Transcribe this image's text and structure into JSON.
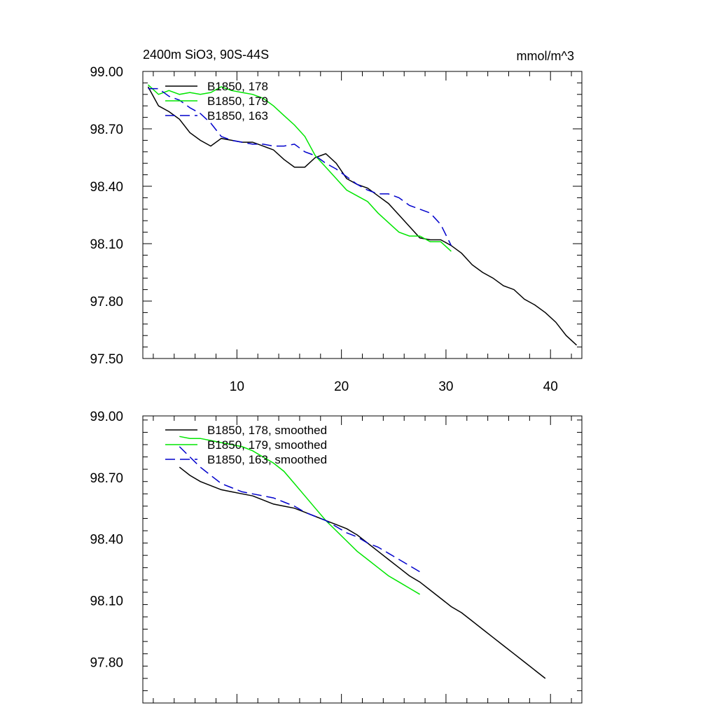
{
  "header": {
    "title": "2400m SiO3, 90S-44S",
    "units": "mmol/m^3"
  },
  "colors": {
    "c178": "#000000",
    "c179": "#00e600",
    "c163": "#0000cc"
  },
  "chart_data": [
    {
      "type": "line",
      "xlim": [
        1,
        43
      ],
      "ylim": [
        97.5,
        99.0
      ],
      "x_ticks": [
        "10",
        "20",
        "30",
        "40"
      ],
      "y_ticks": [
        "99.00",
        "98.70",
        "98.40",
        "98.10",
        "97.80",
        "97.50"
      ],
      "legend": [
        "B1850, 178",
        "B1850, 179",
        "B1850, 163"
      ],
      "series": [
        {
          "name": "B1850, 178",
          "x": [
            1.5,
            2.5,
            3.5,
            4.5,
            5.5,
            6.5,
            7.5,
            8.5,
            9.5,
            10.5,
            11.5,
            12.5,
            13.5,
            14.5,
            15.5,
            16.5,
            17.5,
            18.5,
            19.5,
            20.5,
            21.5,
            22.5,
            23.5,
            24.5,
            25.5,
            26.5,
            27.5,
            28.5,
            29.5,
            30.5,
            31.5,
            32.5,
            33.5,
            34.5,
            35.5,
            36.5,
            37.5,
            38.5,
            39.5,
            40.5,
            41.5,
            42.5
          ],
          "values": [
            98.92,
            98.82,
            98.79,
            98.75,
            98.68,
            98.64,
            98.61,
            98.65,
            98.64,
            98.63,
            98.63,
            98.61,
            98.59,
            98.54,
            98.5,
            98.5,
            98.55,
            98.57,
            98.52,
            98.44,
            98.41,
            98.39,
            98.35,
            98.31,
            98.25,
            98.19,
            98.13,
            98.12,
            98.12,
            98.09,
            98.05,
            97.99,
            97.95,
            97.92,
            97.88,
            97.86,
            97.81,
            97.78,
            97.74,
            97.69,
            97.62,
            97.57
          ]
        },
        {
          "name": "B1850, 179",
          "x": [
            1.5,
            2.5,
            3.5,
            4.5,
            5.5,
            6.5,
            7.5,
            8.5,
            9.5,
            10.5,
            11.5,
            12.5,
            13.5,
            14.5,
            15.5,
            16.5,
            17.5,
            18.5,
            19.5,
            20.5,
            21.5,
            22.5,
            23.5,
            24.5,
            25.5,
            26.5,
            27.5,
            28.5,
            29.5,
            30.5
          ],
          "values": [
            98.93,
            98.88,
            98.9,
            98.88,
            98.89,
            98.88,
            98.89,
            98.92,
            98.9,
            98.89,
            98.88,
            98.86,
            98.82,
            98.77,
            98.72,
            98.66,
            98.56,
            98.5,
            98.44,
            98.38,
            98.35,
            98.32,
            98.26,
            98.21,
            98.16,
            98.14,
            98.14,
            98.11,
            98.11,
            98.06
          ]
        },
        {
          "name": "B1850, 163",
          "x": [
            1.5,
            2.5,
            3.5,
            4.5,
            5.5,
            6.5,
            7.5,
            8.5,
            9.5,
            10.5,
            11.5,
            12.5,
            13.5,
            14.5,
            15.5,
            16.5,
            17.5,
            18.5,
            19.5,
            20.5,
            21.5,
            22.5,
            23.5,
            24.5,
            25.5,
            26.5,
            27.5,
            28.5,
            29.5,
            30.5
          ],
          "values": [
            98.91,
            98.91,
            98.87,
            98.85,
            98.81,
            98.78,
            98.73,
            98.66,
            98.64,
            98.63,
            98.62,
            98.62,
            98.61,
            98.61,
            98.62,
            98.58,
            98.56,
            98.52,
            98.49,
            98.45,
            98.41,
            98.38,
            98.36,
            98.36,
            98.34,
            98.3,
            98.28,
            98.26,
            98.2,
            98.09
          ]
        }
      ]
    },
    {
      "type": "line",
      "xlim": [
        1,
        43
      ],
      "ylim": [
        97.6,
        99.0
      ],
      "y_ticks": [
        "99.00",
        "98.70",
        "98.40",
        "98.10",
        "97.80"
      ],
      "legend": [
        "B1850, 178, smoothed",
        "B1850, 179, smoothed",
        "B1850, 163, smoothed"
      ],
      "series": [
        {
          "name": "B1850, 178, smoothed",
          "x": [
            4.5,
            5.5,
            6.5,
            7.5,
            8.5,
            9.5,
            10.5,
            11.5,
            12.5,
            13.5,
            14.5,
            15.5,
            16.5,
            17.5,
            18.5,
            19.5,
            20.5,
            21.5,
            22.5,
            23.5,
            24.5,
            25.5,
            26.5,
            27.5,
            28.5,
            29.5,
            30.5,
            31.5,
            32.5,
            33.5,
            34.5,
            35.5,
            36.5,
            37.5,
            38.5,
            39.5
          ],
          "values": [
            98.75,
            98.71,
            98.68,
            98.66,
            98.64,
            98.63,
            98.62,
            98.61,
            98.59,
            98.57,
            98.56,
            98.55,
            98.53,
            98.51,
            98.49,
            98.47,
            98.45,
            98.42,
            98.38,
            98.34,
            98.3,
            98.26,
            98.22,
            98.19,
            98.15,
            98.11,
            98.07,
            98.04,
            98.0,
            97.96,
            97.92,
            97.88,
            97.84,
            97.8,
            97.76,
            97.72
          ]
        },
        {
          "name": "B1850, 179, smoothed",
          "x": [
            4.5,
            5.5,
            6.5,
            7.5,
            8.5,
            9.5,
            10.5,
            11.5,
            12.5,
            13.5,
            14.5,
            15.5,
            16.5,
            17.5,
            18.5,
            19.5,
            20.5,
            21.5,
            22.5,
            23.5,
            24.5,
            25.5,
            26.5,
            27.5
          ],
          "values": [
            98.9,
            98.89,
            98.89,
            98.88,
            98.87,
            98.86,
            98.85,
            98.83,
            98.8,
            98.77,
            98.73,
            98.67,
            98.61,
            98.55,
            98.49,
            98.44,
            98.39,
            98.34,
            98.3,
            98.26,
            98.22,
            98.19,
            98.16,
            98.13
          ]
        },
        {
          "name": "B1850, 163, smoothed",
          "x": [
            4.5,
            5.5,
            6.5,
            7.5,
            8.5,
            9.5,
            10.5,
            11.5,
            12.5,
            13.5,
            14.5,
            15.5,
            16.5,
            17.5,
            18.5,
            19.5,
            20.5,
            21.5,
            22.5,
            23.5,
            24.5,
            25.5,
            26.5,
            27.5
          ],
          "values": [
            98.85,
            98.8,
            98.75,
            98.71,
            98.67,
            98.65,
            98.63,
            98.62,
            98.61,
            98.6,
            98.58,
            98.56,
            98.53,
            98.51,
            98.49,
            98.46,
            98.43,
            98.41,
            98.38,
            98.36,
            98.33,
            98.3,
            98.27,
            98.24
          ]
        }
      ]
    }
  ]
}
